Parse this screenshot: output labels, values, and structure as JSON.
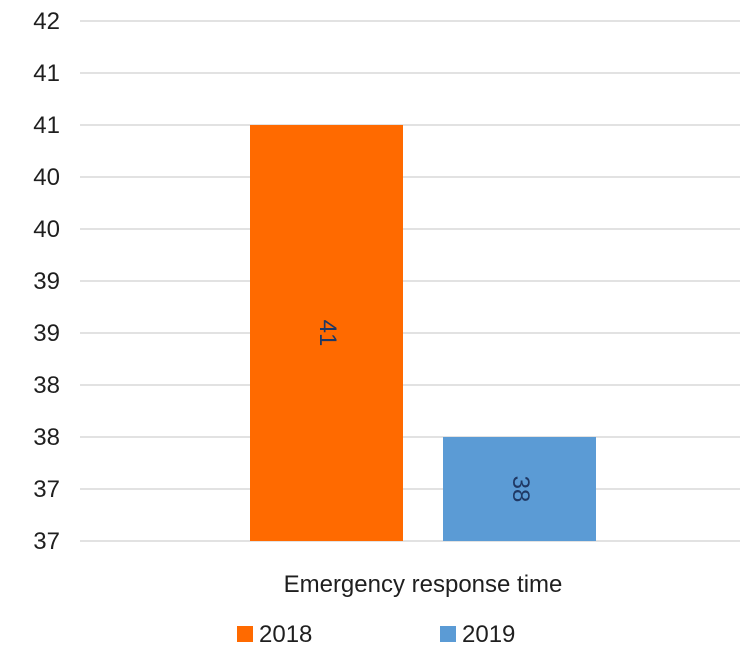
{
  "chart_data": {
    "type": "bar",
    "categories": [
      "Emergency response time"
    ],
    "series": [
      {
        "name": "2018",
        "values": [
          41
        ],
        "color": "#ff6a00"
      },
      {
        "name": "2019",
        "values": [
          38
        ],
        "color": "#5b9bd5"
      }
    ],
    "data_labels": [
      "41",
      "38"
    ],
    "y_ticks": [
      37,
      37.5,
      38,
      38.5,
      39,
      39.5,
      40,
      40.5,
      41,
      41.5,
      42
    ],
    "y_tick_labels": [
      "37",
      "37",
      "38",
      "38",
      "39",
      "39",
      "40",
      "40",
      "41",
      "41",
      "42"
    ],
    "ylim": [
      37,
      42
    ],
    "grid": true,
    "legend_position": "bottom",
    "data_label_orientation": "rotated"
  }
}
